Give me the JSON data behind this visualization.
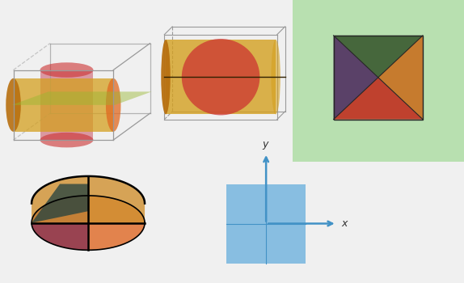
{
  "bg_color": "#f0f0f0",
  "panel_bg": "#b8e0b0",
  "axis_color": "#4292c6",
  "cyl_yellow": "#d4a020",
  "cyl_orange": "#e06820",
  "cyl_dark": "#b87010",
  "sphere_red": "#cc3030",
  "sphere_pink": "#c85060",
  "green_plane": "#98b830",
  "box_edge": "#999999",
  "wedge_orange": "#e07030",
  "wedge_orange2": "#d09030",
  "wedge_maroon": "#903040",
  "wedge_darkmaroon": "#602030",
  "wedge_teal": "#204040",
  "blue_fill": "#7ab8e0",
  "blue_edge": "#4292c6",
  "diamond_top": "#3a5a30",
  "diamond_right": "#c87020",
  "diamond_bottom": "#c03020",
  "diamond_left": "#503060"
}
